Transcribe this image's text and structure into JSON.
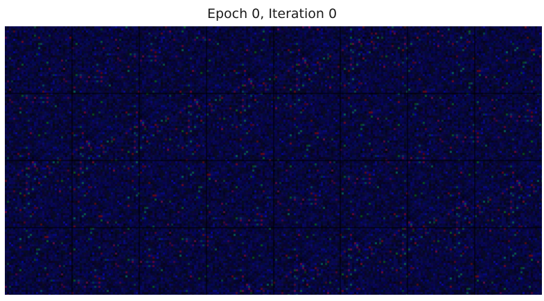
{
  "figure": {
    "title": "Epoch 0, Iteration 0"
  },
  "image_grid": {
    "columns": 8,
    "rows": 4,
    "description_colors": {
      "background": "#05053a",
      "separator": "#000000",
      "noise_blue": "#0a0a7a",
      "noise_red": "#5a0a1a",
      "noise_green": "#0a4a2a"
    }
  }
}
